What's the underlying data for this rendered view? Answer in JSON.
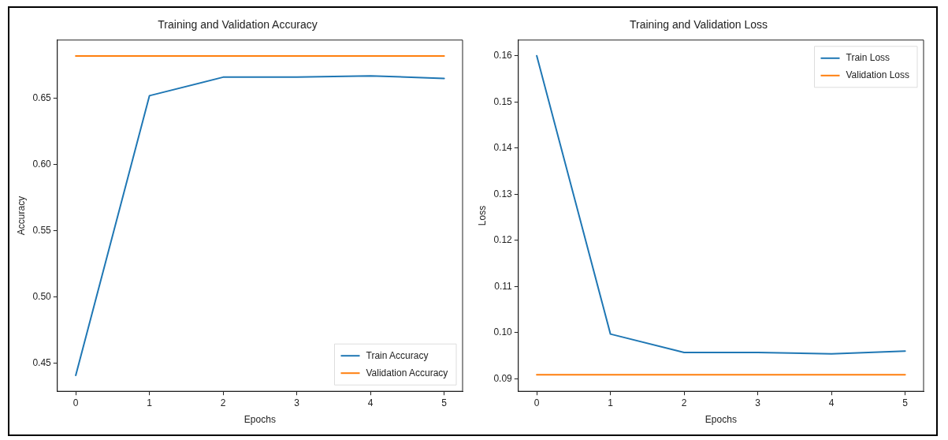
{
  "chart_data": [
    {
      "type": "line",
      "title": "Training and Validation Accuracy",
      "xlabel": "Epochs",
      "ylabel": "Accuracy",
      "x": [
        0,
        1,
        2,
        3,
        4,
        5
      ],
      "series": [
        {
          "name": "Train Accuracy",
          "color": "#1f77b4",
          "values": [
            0.441,
            0.652,
            0.666,
            0.666,
            0.667,
            0.665
          ]
        },
        {
          "name": "Validation Accuracy",
          "color": "#ff7f0e",
          "values": [
            0.682,
            0.682,
            0.682,
            0.682,
            0.682,
            0.682
          ]
        }
      ],
      "xlim": [
        -0.25,
        5.25
      ],
      "xticks": [
        0,
        1,
        2,
        3,
        4,
        5
      ],
      "ylim": [
        0.429,
        0.694
      ],
      "yticks": [
        0.45,
        {
          "value": 0.5,
          "label": "0.50"
        },
        0.55,
        {
          "value": 0.6,
          "label": "0.60"
        },
        0.65
      ],
      "grid": false,
      "legend": "bottom right",
      "marker": "none",
      "line_style": "solid"
    },
    {
      "type": "line",
      "title": "Training and Validation Loss",
      "xlabel": "Epochs",
      "ylabel": "Loss",
      "x": [
        0,
        1,
        2,
        3,
        4,
        5
      ],
      "series": [
        {
          "name": "Train Loss",
          "color": "#1f77b4",
          "values": [
            0.16,
            0.0997,
            0.0957,
            0.0957,
            0.0954,
            0.096
          ]
        },
        {
          "name": "Validation Loss",
          "color": "#ff7f0e",
          "values": [
            0.0909,
            0.0909,
            0.0909,
            0.0909,
            0.0909,
            0.0909
          ]
        }
      ],
      "xlim": [
        -0.25,
        5.25
      ],
      "xticks": [
        0,
        1,
        2,
        3,
        4,
        5
      ],
      "ylim": [
        0.0873,
        0.1634
      ],
      "yticks": [
        0.09,
        {
          "value": 0.1,
          "label": "0.10"
        },
        0.11,
        0.12,
        0.13,
        0.14,
        0.15,
        0.16
      ],
      "grid": false,
      "legend": "top right",
      "marker": "none",
      "line_style": "solid"
    }
  ]
}
